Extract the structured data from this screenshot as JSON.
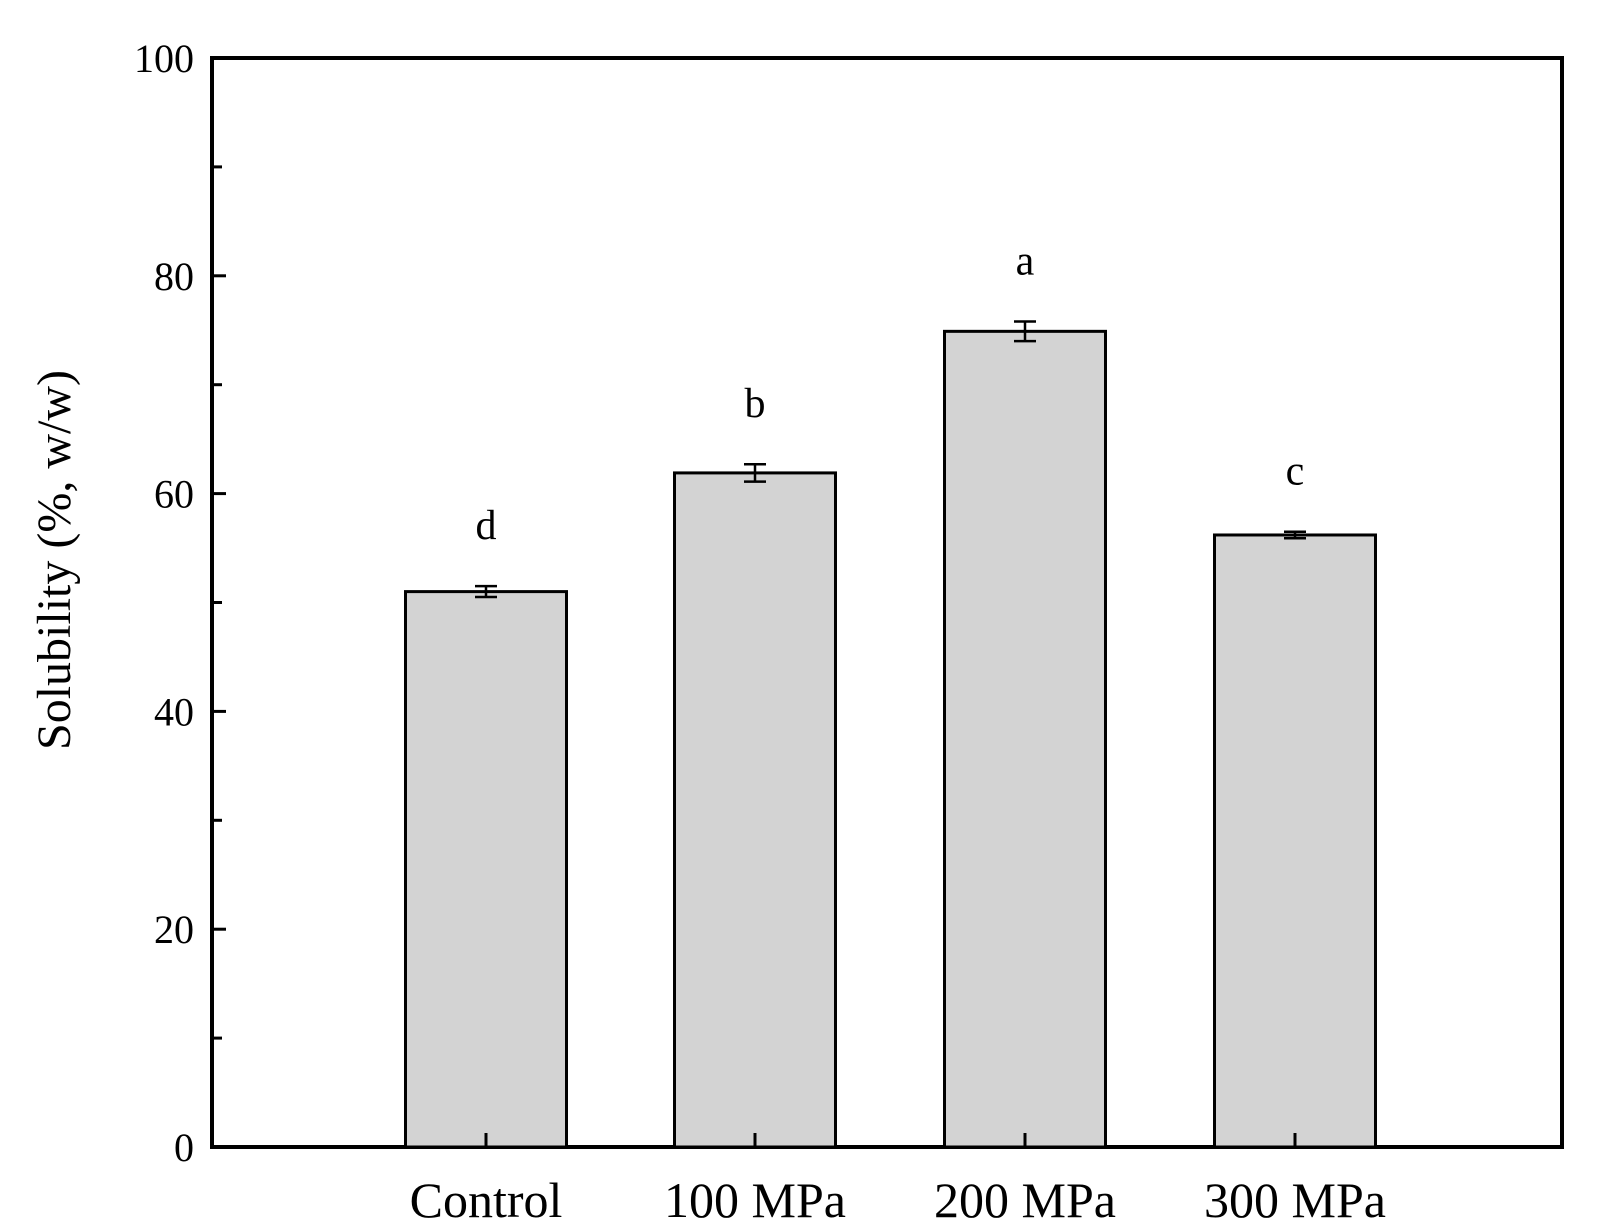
{
  "chart_data": {
    "type": "bar",
    "categories": [
      "Control",
      "100 MPa",
      "200 MPa",
      "300 MPa"
    ],
    "values": [
      51.0,
      61.9,
      74.9,
      56.2
    ],
    "errors": [
      0.5,
      0.8,
      0.9,
      0.3
    ],
    "significance_letters": [
      "d",
      "b",
      "a",
      "c"
    ],
    "xlabel": "",
    "ylabel": "Solubility (%, w/w)",
    "ylim": [
      0,
      100
    ],
    "yticks": [
      "0",
      "20",
      "40",
      "60",
      "80",
      "100"
    ],
    "grid": false,
    "legend": "none",
    "bar_color": "#d3d3d3",
    "edge_color": "#000000"
  }
}
